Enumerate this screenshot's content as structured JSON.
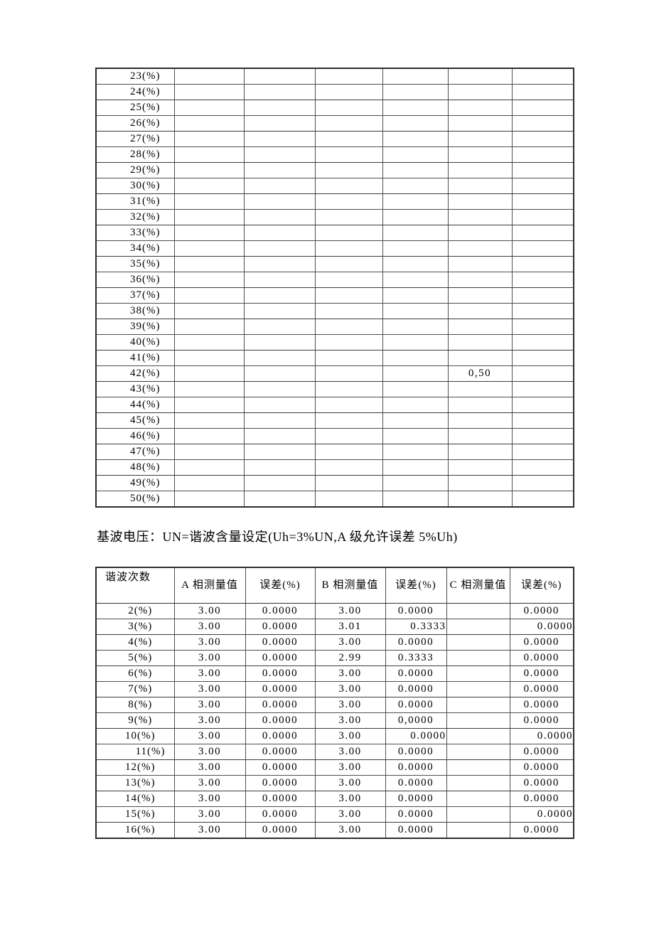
{
  "heading": {
    "text": "基波电压：UN=谐波含量设定(Uh=3%UN,A 级允许误差 5%Uh)"
  },
  "table1": {
    "rows": [
      {
        "label": "23(%)",
        "cells": [
          "",
          "",
          "",
          "",
          "",
          ""
        ]
      },
      {
        "label": "24(%)",
        "cells": [
          "",
          "",
          "",
          "",
          "",
          ""
        ]
      },
      {
        "label": "25(%)",
        "cells": [
          "",
          "",
          "",
          "",
          "",
          ""
        ]
      },
      {
        "label": "26(%)",
        "cells": [
          "",
          "",
          "",
          "",
          "",
          ""
        ]
      },
      {
        "label": "27(%)",
        "cells": [
          "",
          "",
          "",
          "",
          "",
          ""
        ]
      },
      {
        "label": "28(%)",
        "cells": [
          "",
          "",
          "",
          "",
          "",
          ""
        ]
      },
      {
        "label": "29(%)",
        "cells": [
          "",
          "",
          "",
          "",
          "",
          ""
        ]
      },
      {
        "label": "30(%)",
        "cells": [
          "",
          "",
          "",
          "",
          "",
          ""
        ]
      },
      {
        "label": "31(%)",
        "cells": [
          "",
          "",
          "",
          "",
          "",
          ""
        ]
      },
      {
        "label": "32(%)",
        "cells": [
          "",
          "",
          "",
          "",
          "",
          ""
        ]
      },
      {
        "label": "33(%)",
        "cells": [
          "",
          "",
          "",
          "",
          "",
          ""
        ]
      },
      {
        "label": "34(%)",
        "cells": [
          "",
          "",
          "",
          "",
          "",
          ""
        ]
      },
      {
        "label": "35(%)",
        "cells": [
          "",
          "",
          "",
          "",
          "",
          ""
        ]
      },
      {
        "label": "36(%)",
        "cells": [
          "",
          "",
          "",
          "",
          "",
          ""
        ]
      },
      {
        "label": "37(%)",
        "cells": [
          "",
          "",
          "",
          "",
          "",
          ""
        ]
      },
      {
        "label": "38(%)",
        "cells": [
          "",
          "",
          "",
          "",
          "",
          ""
        ]
      },
      {
        "label": "39(%)",
        "cells": [
          "",
          "",
          "",
          "",
          "",
          ""
        ]
      },
      {
        "label": "40(%)",
        "cells": [
          "",
          "",
          "",
          "",
          "",
          ""
        ]
      },
      {
        "label": "41(%)",
        "cells": [
          "",
          "",
          "",
          "",
          "",
          ""
        ]
      },
      {
        "label": "42(%)",
        "cells": [
          "",
          "",
          "",
          "",
          "0,50",
          ""
        ]
      },
      {
        "label": "43(%)",
        "cells": [
          "",
          "",
          "",
          "",
          "",
          ""
        ]
      },
      {
        "label": "44(%)",
        "cells": [
          "",
          "",
          "",
          "",
          "",
          ""
        ]
      },
      {
        "label": "45(%)",
        "cells": [
          "",
          "",
          "",
          "",
          "",
          ""
        ]
      },
      {
        "label": "46(%)",
        "cells": [
          "",
          "",
          "",
          "",
          "",
          ""
        ]
      },
      {
        "label": "47(%)",
        "cells": [
          "",
          "",
          "",
          "",
          "",
          ""
        ]
      },
      {
        "label": "48(%)",
        "cells": [
          "",
          "",
          "",
          "",
          "",
          ""
        ]
      },
      {
        "label": "49(%)",
        "cells": [
          "",
          "",
          "",
          "",
          "",
          ""
        ]
      },
      {
        "label": "50(%)",
        "cells": [
          "",
          "",
          "",
          "",
          "",
          ""
        ]
      }
    ]
  },
  "table2": {
    "headers": [
      "谐波次数",
      "A 相测量值",
      "误差(%)",
      "B 相测量值",
      "误差(%)",
      "C 相测量值",
      "误差(%)"
    ],
    "rows": [
      {
        "label": "2(%)",
        "values": [
          "3.00",
          "0.0000",
          "3.00",
          "0.0000",
          "",
          "0.0000"
        ]
      },
      {
        "label": "3(%)",
        "values": [
          "3.00",
          "0.0000",
          "3.01",
          "0.3333",
          "",
          "0.0000"
        ],
        "align": {
          "3": "right",
          "5": "right"
        }
      },
      {
        "label": "4(%)",
        "values": [
          "3.00",
          "0.0000",
          "3.00",
          "0.0000",
          "",
          "0.0000"
        ]
      },
      {
        "label": "5(%)",
        "values": [
          "3.00",
          "0.0000",
          "2.99",
          "0.3333",
          "",
          "0.0000"
        ]
      },
      {
        "label": "6(%)",
        "values": [
          "3.00",
          "0.0000",
          "3.00",
          "0.0000",
          "",
          "0.0000"
        ]
      },
      {
        "label": "7(%)",
        "values": [
          "3.00",
          "0.0000",
          "3.00",
          "0.0000",
          "",
          "0.0000"
        ]
      },
      {
        "label": "8(%)",
        "values": [
          "3.00",
          "0.0000",
          "3.00",
          "0.0000",
          "",
          "0.0000"
        ]
      },
      {
        "label": "9(%)",
        "values": [
          "3.00",
          "0.0000",
          "3.00",
          "0,0000",
          "",
          "0.0000"
        ]
      },
      {
        "label": "10(%)",
        "values": [
          "3.00",
          "0.0000",
          "3.00",
          "0.0000",
          "",
          "0.0000"
        ],
        "align": {
          "3": "right",
          "5": "right"
        }
      },
      {
        "label": "11(%)",
        "values": [
          "3.00",
          "0.0000",
          "3.00",
          "0.0000",
          "",
          "0.0000"
        ],
        "label_align": "right"
      },
      {
        "label": "12(%)",
        "values": [
          "3.00",
          "0.0000",
          "3.00",
          "0.0000",
          "",
          "0.0000"
        ]
      },
      {
        "label": "13(%)",
        "values": [
          "3.00",
          "0.0000",
          "3.00",
          "0.0000",
          "",
          "0.0000"
        ]
      },
      {
        "label": "14(%)",
        "values": [
          "3.00",
          "0.0000",
          "3.00",
          "0.0000",
          "",
          "0.0000"
        ]
      },
      {
        "label": "15(%)",
        "values": [
          "3.00",
          "0.0000",
          "3.00",
          "0.0000",
          "",
          "0.0000"
        ],
        "align": {
          "5": "right"
        }
      },
      {
        "label": "16(%)",
        "values": [
          "3.00",
          "0.0000",
          "3.00",
          "0.0000",
          "",
          "0.0000"
        ]
      }
    ]
  }
}
